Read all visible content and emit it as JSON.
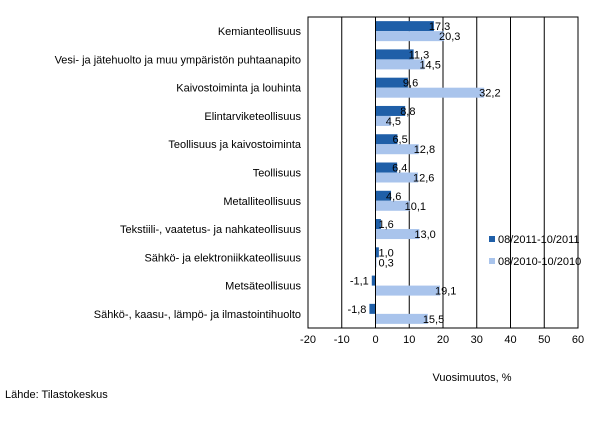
{
  "chart_data": {
    "type": "bar",
    "orientation": "horizontal",
    "categories": [
      "Kemianteollisuus",
      "Vesi- ja jätehuolto ja muu ympäristön puhtaanapito",
      "Kaivostoiminta ja louhinta",
      "Elintarviketeollisuus",
      "Teollisuus ja kaivostoiminta",
      "Teollisuus",
      "Metalliteollisuus",
      "Tekstiili-, vaatetus- ja nahkateollisuus",
      "Sähkö- ja elektroniikkateollisuus",
      "Metsäteollisuus",
      "Sähkö-, kaasu-, lämpö- ja ilmastointihuolto"
    ],
    "series": [
      {
        "name": "08/2011-10/2011",
        "color": "#1f5fa8",
        "values": [
          17.3,
          11.3,
          9.6,
          8.8,
          6.5,
          6.4,
          4.6,
          1.6,
          1.0,
          -1.1,
          -1.8
        ],
        "labels": [
          "17,3",
          "11,3",
          "9,6",
          "8,8",
          "6,5",
          "6,4",
          "4,6",
          "1,6",
          "1,0",
          "-1,1",
          "-1,8"
        ]
      },
      {
        "name": "08/2010-10/2010",
        "color": "#a9c4ec",
        "values": [
          20.3,
          14.5,
          32.2,
          4.5,
          12.8,
          12.6,
          10.1,
          13.0,
          0.3,
          19.1,
          15.5
        ],
        "labels": [
          "20,3",
          "14,5",
          "32,2",
          "4,5",
          "12,8",
          "12,6",
          "10,1",
          "13,0",
          "0,3",
          "19,1",
          "15,5"
        ]
      }
    ],
    "xlim": [
      -20,
      60
    ],
    "xticks": [
      -20,
      -10,
      0,
      10,
      20,
      30,
      40,
      50,
      60
    ],
    "tick_labels": [
      "-20",
      "-10",
      "0",
      "10",
      "20",
      "30",
      "40",
      "50",
      "60"
    ],
    "xlabel": "Vuosimuutos, %",
    "grid": true,
    "legend_position": "right"
  },
  "source_note": "Lähde: Tilastokeskus"
}
